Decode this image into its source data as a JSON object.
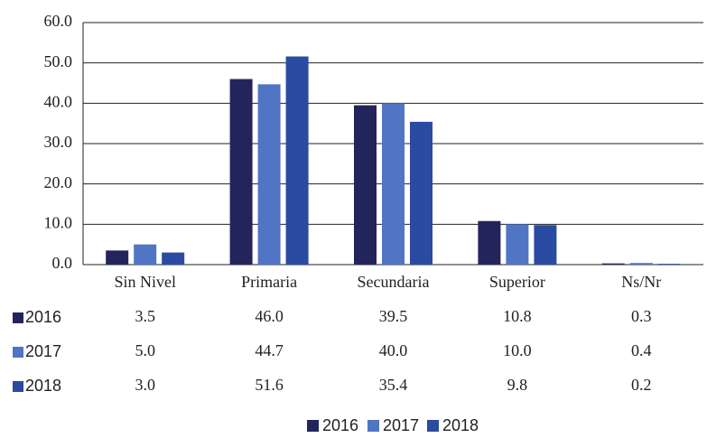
{
  "chart_data": {
    "type": "bar",
    "categories": [
      "Sin Nivel",
      "Primaria",
      "Secundaria",
      "Superior",
      "Ns/Nr"
    ],
    "series": [
      {
        "name": "2016",
        "color": "#24245c",
        "values": [
          3.5,
          46.0,
          39.5,
          10.8,
          0.3
        ],
        "value_labels": [
          "3.5",
          "46.0",
          "39.5",
          "10.8",
          "0.3"
        ]
      },
      {
        "name": "2017",
        "color": "#5075c4",
        "values": [
          5.0,
          44.7,
          40.0,
          10.0,
          0.4
        ],
        "value_labels": [
          "5.0",
          "44.7",
          "40.0",
          "10.0",
          "0.4"
        ]
      },
      {
        "name": "2018",
        "color": "#2b4aa1",
        "values": [
          3.0,
          51.6,
          35.4,
          9.8,
          0.2
        ],
        "value_labels": [
          "3.0",
          "51.6",
          "35.4",
          "9.8",
          "0.2"
        ]
      }
    ],
    "ylim": [
      0,
      60
    ],
    "yticks": [
      {
        "value": 0,
        "label": "0.0"
      },
      {
        "value": 10,
        "label": "10.0"
      },
      {
        "value": 20,
        "label": "20.0"
      },
      {
        "value": 30,
        "label": "30.0"
      },
      {
        "value": 40,
        "label": "40.0"
      },
      {
        "value": 50,
        "label": "50.0"
      },
      {
        "value": 60,
        "label": "60.0"
      }
    ],
    "grid": true,
    "legend": "bottom"
  }
}
